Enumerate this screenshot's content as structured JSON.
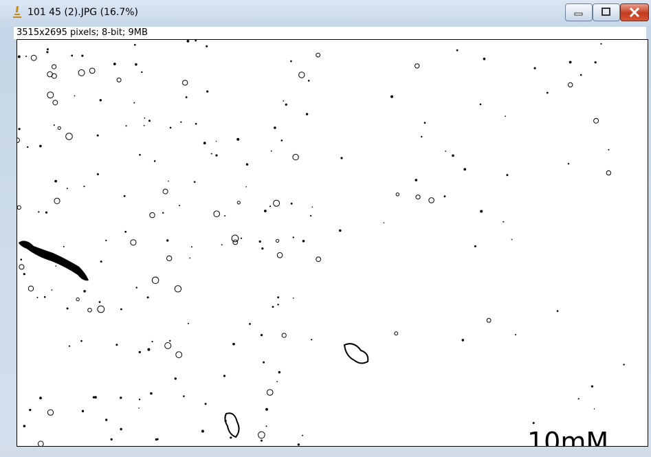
{
  "window": {
    "title": "101 45 (2).JPG (16.7%)",
    "info": "3515x2695 pixels; 8-bit; 9MB"
  },
  "image": {
    "label": "10mM"
  }
}
